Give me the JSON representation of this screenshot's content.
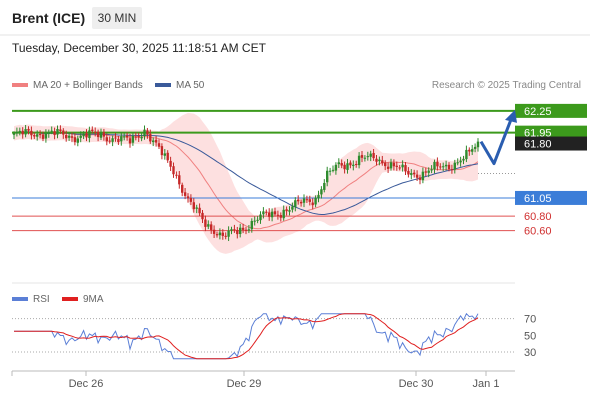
{
  "header": {
    "instrument": "Brent (ICE)",
    "timeframe": "30 MIN"
  },
  "datetime": "Tuesday, December 30, 2025 11:18:51 AM CET",
  "legend": {
    "bb_label": "MA 20 + Bollinger Bands",
    "bb_color": "#f08080",
    "ma50_label": "MA 50",
    "ma50_color": "#3a5a9a",
    "copyright": "Research © 2025 Trading Central"
  },
  "rsi_legend": {
    "rsi_label": "RSI",
    "rsi_color": "#5b7fd6",
    "ma_label": "9MA",
    "ma_color": "#e02020"
  },
  "chart_data": [
    {
      "type": "candlestick",
      "x_labels": [
        "Dec 26",
        "Dec 29",
        "Dec 30",
        "Jan 1"
      ],
      "ylim": [
        59.85,
        62.4
      ],
      "levels": [
        {
          "label": "62.25",
          "value": 62.25,
          "kind": "resistance",
          "color": "#3c9a1c"
        },
        {
          "label": "61.95",
          "value": 61.95,
          "kind": "resistance",
          "color": "#3c9a1c"
        },
        {
          "label": "61.80",
          "value": 61.8,
          "kind": "last-price",
          "color": "#222222"
        },
        {
          "label": "61.05",
          "value": 61.05,
          "kind": "pivot",
          "color": "#3b7dd8"
        },
        {
          "label": "60.80",
          "value": 60.8,
          "kind": "support",
          "color": "#e05050"
        },
        {
          "label": "60.60",
          "value": 60.6,
          "kind": "support",
          "color": "#e05050"
        }
      ],
      "forecast_target": 62.25
    },
    {
      "type": "line",
      "ylim": [
        18,
        78
      ],
      "y_ticks": [
        70,
        50,
        30
      ],
      "guide_lines": [
        70,
        30
      ]
    }
  ]
}
